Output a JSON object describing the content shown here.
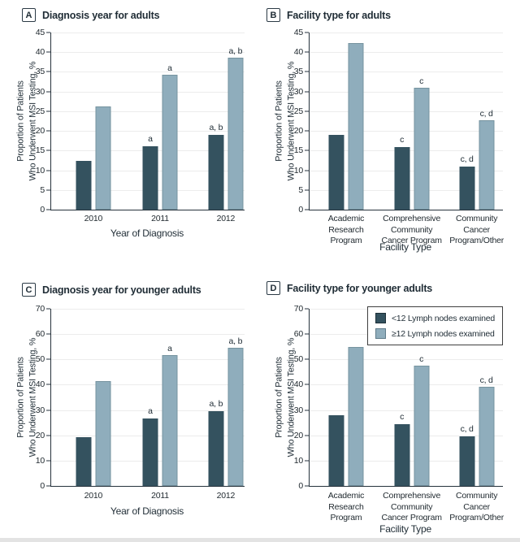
{
  "colors": {
    "dark_bar": "#34525f",
    "light_bar": "#8fadbc",
    "light_bar_border": "#76939f",
    "axis": "#26323c",
    "grid": "#ececec",
    "text": "#222b31"
  },
  "legend": {
    "items": [
      {
        "label": "<12 Lymph nodes examined",
        "swatch": "dark"
      },
      {
        "label": "≥12 Lymph nodes examined",
        "swatch": "light"
      }
    ]
  },
  "chart_data": [
    {
      "type": "bar",
      "panel": "A",
      "title": "Diagnosis year for adults",
      "categories": [
        "2010",
        "2011",
        "2012"
      ],
      "xlabel": "Year of Diagnosis",
      "ylabel": "Proportion of Patients\nWho Underwent MSI Testing, %",
      "ylim": [
        0,
        45
      ],
      "ytick_step": 5,
      "grid": true,
      "group_centers_pct": [
        21.8,
        56.3,
        90.3
      ],
      "series": [
        {
          "name": "<12 Lymph nodes examined",
          "values": [
            12.3,
            16.2,
            19.1
          ],
          "annotations": [
            "",
            "a",
            "a, b"
          ]
        },
        {
          "name": "≥12 Lymph nodes examined",
          "values": [
            26.3,
            34.3,
            38.7
          ],
          "annotations": [
            "",
            "a",
            "a, b"
          ]
        }
      ]
    },
    {
      "type": "bar",
      "panel": "B",
      "title": "Facility type for adults",
      "categories": [
        "Academic\nResearch\nProgram",
        "Comprehensive\nCommunity\nCancer Program",
        "Community\nCancer\nProgram/Other"
      ],
      "xlabel": "Facility Type",
      "ylabel": "Proportion of Patients\nWho Underwent MSI Testing, %",
      "ylim": [
        0,
        45
      ],
      "ytick_step": 5,
      "grid": true,
      "group_centers_pct": [
        18.9,
        52.8,
        86.4
      ],
      "series": [
        {
          "name": "<12 Lymph nodes examined",
          "values": [
            19.0,
            16.0,
            11.0
          ],
          "annotations": [
            "",
            "c",
            "c, d"
          ]
        },
        {
          "name": "≥12 Lymph nodes examined",
          "values": [
            42.4,
            31.0,
            22.8
          ],
          "annotations": [
            "",
            "c",
            "c, d"
          ]
        }
      ]
    },
    {
      "type": "bar",
      "panel": "C",
      "title": "Diagnosis year for younger adults",
      "categories": [
        "2010",
        "2011",
        "2012"
      ],
      "xlabel": "Year of Diagnosis",
      "ylabel": "Proportion of Patients\nWho Underwent MSI Testing, %",
      "ylim": [
        0,
        70
      ],
      "ytick_step": 10,
      "grid": true,
      "group_centers_pct": [
        21.8,
        56.3,
        90.3
      ],
      "series": [
        {
          "name": "<12 Lymph nodes examined",
          "values": [
            19.2,
            26.8,
            29.6
          ],
          "annotations": [
            "",
            "a",
            "a, b"
          ]
        },
        {
          "name": "≥12 Lymph nodes examined",
          "values": [
            41.5,
            51.7,
            54.6
          ],
          "annotations": [
            "",
            "a",
            "a, b"
          ]
        }
      ]
    },
    {
      "type": "bar",
      "panel": "D",
      "title": "Facility type for younger adults",
      "categories": [
        "Academic\nResearch\nProgram",
        "Comprehensive\nCommunity\nCancer Program",
        "Community\nCancer\nProgram/Other"
      ],
      "xlabel": "Facility Type",
      "ylabel": "Proportion of Patients\nWho Underwent MSI Testing, %",
      "ylim": [
        0,
        70
      ],
      "ytick_step": 10,
      "grid": true,
      "legend_position": "top-right-inside",
      "group_centers_pct": [
        18.9,
        52.8,
        86.4
      ],
      "series": [
        {
          "name": "<12 Lymph nodes examined",
          "values": [
            28.0,
            24.3,
            19.6
          ],
          "annotations": [
            "",
            "c",
            "c, d"
          ]
        },
        {
          "name": "≥12 Lymph nodes examined",
          "values": [
            54.8,
            47.4,
            39.1
          ],
          "annotations": [
            "",
            "c",
            "c, d"
          ]
        }
      ]
    }
  ]
}
